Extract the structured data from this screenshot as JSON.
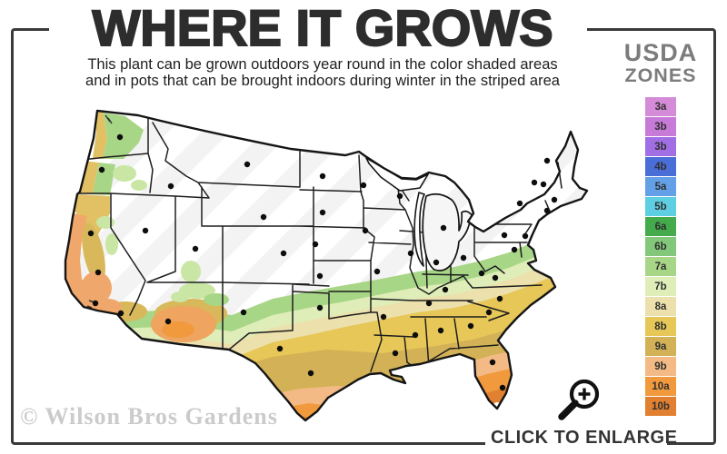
{
  "header": {
    "title": "WHERE IT GROWS",
    "subtitle_line1": "This plant can be grown outdoors year round in the color shaded areas",
    "subtitle_line2": "and in pots that can be brought indoors during winter in the striped area"
  },
  "legend": {
    "heading_line1": "USDA",
    "heading_line2": "ZONES",
    "zones": [
      {
        "label": "3a",
        "color": "#d48bd8"
      },
      {
        "label": "3b",
        "color": "#c77ad7"
      },
      {
        "label": "3b",
        "color": "#a16ee4"
      },
      {
        "label": "4b",
        "color": "#4a6ed8"
      },
      {
        "label": "5a",
        "color": "#64a0e8"
      },
      {
        "label": "5b",
        "color": "#5ecfe2"
      },
      {
        "label": "6a",
        "color": "#43ab4b"
      },
      {
        "label": "6b",
        "color": "#83c87a"
      },
      {
        "label": "7a",
        "color": "#a8d687"
      },
      {
        "label": "7b",
        "color": "#dfeeb8"
      },
      {
        "label": "8a",
        "color": "#ece0ac"
      },
      {
        "label": "8b",
        "color": "#e7c757"
      },
      {
        "label": "9a",
        "color": "#d2b157"
      },
      {
        "label": "9b",
        "color": "#f3ba85"
      },
      {
        "label": "10a",
        "color": "#f09a3d"
      },
      {
        "label": "10b",
        "color": "#e08030"
      }
    ]
  },
  "map": {
    "colors": {
      "land": "#f3f3f3",
      "stripe": "#ffffff",
      "coast_gold": "#e2c164",
      "valley_gold": "#d8b85a",
      "coast_salmon": "#f0a76b",
      "az_orange": "#efa45f",
      "green_light": "#c9e6a4"
    }
  },
  "footer": {
    "watermark": "© Wilson Bros Gardens",
    "enlarge_label": "CLICK TO ENLARGE"
  }
}
